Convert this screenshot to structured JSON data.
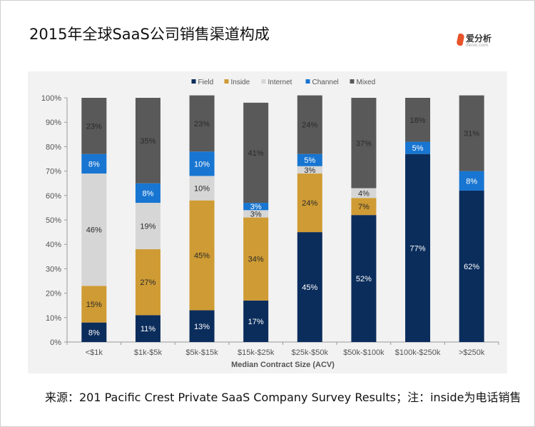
{
  "page": {
    "title": "2015年全球SaaS公司销售渠道构成",
    "logo_text": "爱分析",
    "logo_sub": "ifenxi.com",
    "source": "来源：201 Pacific Crest Private SaaS Company Survey Results；注：inside为电话销售"
  },
  "chart_data": {
    "type": "bar",
    "stacked": true,
    "xlabel": "Median Contract Size (ACV)",
    "ylabel": "",
    "ylim": [
      0,
      100
    ],
    "yticks": [
      "0%",
      "10%",
      "20%",
      "30%",
      "40%",
      "50%",
      "60%",
      "70%",
      "80%",
      "90%",
      "100%"
    ],
    "legend_position": "top-center",
    "categories": [
      "<$1k",
      "$1k-$5k",
      "$5k-$15k",
      "$15k-$25k",
      "$25k-$50k",
      "$50k-$100k",
      "$100k-$250k",
      ">$250k"
    ],
    "series": [
      {
        "name": "Field",
        "color": "#0b2d5c",
        "values": [
          8,
          11,
          13,
          17,
          45,
          52,
          77,
          62
        ]
      },
      {
        "name": "Inside",
        "color": "#cf9b34",
        "values": [
          15,
          27,
          45,
          34,
          24,
          7,
          0,
          0
        ]
      },
      {
        "name": "Internet",
        "color": "#d6d6d6",
        "values": [
          46,
          19,
          10,
          3,
          3,
          4,
          0,
          0
        ]
      },
      {
        "name": "Channel",
        "color": "#1875d1",
        "values": [
          8,
          8,
          10,
          3,
          5,
          0,
          5,
          8
        ]
      },
      {
        "name": "Mixed",
        "color": "#595959",
        "values": [
          23,
          35,
          23,
          41,
          24,
          37,
          18,
          31
        ]
      }
    ],
    "labels": [
      [
        "8%",
        "11%",
        "13%",
        "17%",
        "45%",
        "52%",
        "77%",
        "62%"
      ],
      [
        "15%",
        "27%",
        "45%",
        "34%",
        "24%",
        "7%",
        "",
        ""
      ],
      [
        "46%",
        "19%",
        "10%",
        "3%",
        "3%",
        "4%",
        "",
        ""
      ],
      [
        "8%",
        "8%",
        "10%",
        "3%",
        "5%",
        "",
        "5%",
        "8%"
      ],
      [
        "23%",
        "35%",
        "23%",
        "41%",
        "24%",
        "37%",
        "18%",
        "31%"
      ]
    ]
  }
}
